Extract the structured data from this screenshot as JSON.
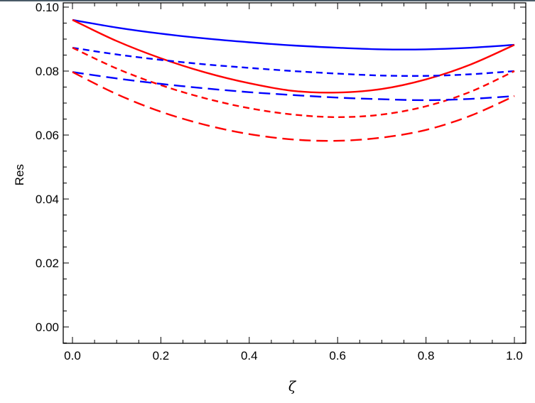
{
  "chart_data": {
    "type": "line",
    "title": "",
    "xlabel": "ζ",
    "ylabel": "Res",
    "xlim": [
      0.0,
      1.0
    ],
    "ylim": [
      -0.005,
      0.1
    ],
    "xticks": [
      "0.0",
      "0.2",
      "0.4",
      "0.6",
      "0.8",
      "1.0"
    ],
    "yticks": [
      "0.00",
      "0.02",
      "0.04",
      "0.06",
      "0.08",
      "0.10"
    ],
    "grid": false,
    "legend": null,
    "x": [
      0.0,
      0.1,
      0.2,
      0.3,
      0.4,
      0.5,
      0.6,
      0.7,
      0.8,
      0.9,
      1.0
    ],
    "series": [
      {
        "name": "blue-solid",
        "color": "#0000ff",
        "dash": "none",
        "values": [
          0.096,
          0.0936,
          0.0917,
          0.0902,
          0.089,
          0.088,
          0.0873,
          0.0868,
          0.0868,
          0.0873,
          0.0882
        ]
      },
      {
        "name": "red-solid",
        "color": "#ff0000",
        "dash": "none",
        "values": [
          0.096,
          0.0894,
          0.084,
          0.0796,
          0.0762,
          0.0738,
          0.0733,
          0.0744,
          0.0774,
          0.082,
          0.0882
        ]
      },
      {
        "name": "blue-short-dash",
        "color": "#0000ff",
        "dash": "short",
        "values": [
          0.0873,
          0.0852,
          0.0835,
          0.0821,
          0.081,
          0.08,
          0.0792,
          0.0786,
          0.0785,
          0.079,
          0.08
        ]
      },
      {
        "name": "red-short-dash",
        "color": "#ff0000",
        "dash": "short",
        "values": [
          0.0873,
          0.0808,
          0.0756,
          0.0715,
          0.0684,
          0.0664,
          0.0656,
          0.0664,
          0.069,
          0.0735,
          0.08
        ]
      },
      {
        "name": "blue-long-dash",
        "color": "#0000ff",
        "dash": "long",
        "values": [
          0.0797,
          0.0777,
          0.076,
          0.0746,
          0.0734,
          0.0725,
          0.0717,
          0.0712,
          0.0709,
          0.0713,
          0.0722
        ]
      },
      {
        "name": "red-long-dash",
        "color": "#ff0000",
        "dash": "long",
        "values": [
          0.0797,
          0.0728,
          0.0673,
          0.0632,
          0.0603,
          0.0586,
          0.0582,
          0.0592,
          0.0616,
          0.066,
          0.0722
        ]
      }
    ]
  }
}
